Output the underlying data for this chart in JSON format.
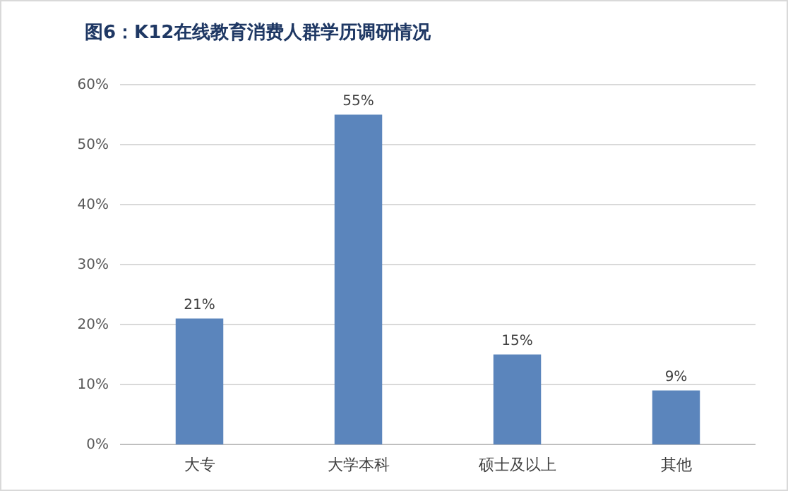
{
  "chart_data": {
    "type": "bar",
    "title": "图6：K12在线教育消费人群学历调研情况",
    "categories": [
      "大专",
      "大学本科",
      "硕士及以上",
      "其他"
    ],
    "values": [
      21,
      55,
      15,
      9
    ],
    "value_labels": [
      "21%",
      "55%",
      "15%",
      "9%"
    ],
    "color": "#5b85bc",
    "ylim": [
      0,
      60
    ],
    "yticks": [
      {
        "value": 0,
        "label": "0%"
      },
      {
        "value": 10,
        "label": "10%"
      },
      {
        "value": 20,
        "label": "20%"
      },
      {
        "value": 30,
        "label": "30%"
      },
      {
        "value": 40,
        "label": "40%"
      },
      {
        "value": 50,
        "label": "50%"
      },
      {
        "value": 60,
        "label": "60%"
      }
    ],
    "grid": "y"
  }
}
